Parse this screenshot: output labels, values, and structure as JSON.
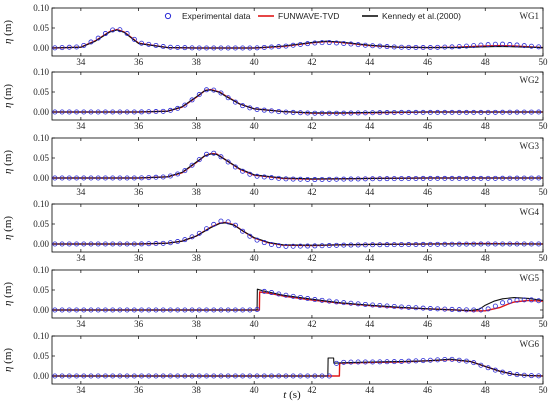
{
  "chart_data": {
    "type": "line",
    "xlabel_italic": "t",
    "xlabel_unit": " (s)",
    "ylabel_italic": "η",
    "ylabel_unit": " (m)",
    "xlim": [
      33,
      50
    ],
    "xticks": [
      34,
      36,
      38,
      40,
      42,
      44,
      46,
      48,
      50
    ],
    "ylim": [
      -0.02,
      0.1
    ],
    "yticks": [
      0.0,
      0.05,
      0.1
    ],
    "ytick_labels": [
      "0.00",
      "0.05",
      "0.10"
    ],
    "legend": {
      "placement": "top",
      "entries": [
        {
          "label": "Experimental data",
          "style": "marker",
          "color": "#2b2bd6"
        },
        {
          "label": "FUNWAVE-TVD",
          "style": "line",
          "color": "#e01818"
        },
        {
          "label": "Kennedy et al.(2000)",
          "style": "line",
          "color": "#111111"
        }
      ]
    },
    "panels": [
      {
        "label": "WG1",
        "series": [
          {
            "key": "exp",
            "x": [
              33,
              34,
              34.5,
              35,
              35.25,
              35.5,
              36,
              37,
              38,
              40,
              41,
              42,
              42.5,
              43,
              44,
              45,
              46,
              47,
              48,
              48.5,
              49,
              50
            ],
            "y": [
              0,
              0.003,
              0.02,
              0.043,
              0.048,
              0.042,
              0.013,
              0.002,
              0,
              0,
              0.004,
              0.012,
              0.014,
              0.012,
              0.006,
              0.002,
              0.001,
              0.003,
              0.008,
              0.01,
              0.008,
              0.002
            ]
          },
          {
            "key": "funwave",
            "x": [
              33,
              34,
              34.5,
              35,
              35.25,
              35.5,
              36,
              37,
              38,
              40,
              41,
              42,
              42.5,
              43,
              44,
              45,
              46,
              47,
              48,
              48.5,
              49,
              50
            ],
            "y": [
              0,
              0.002,
              0.018,
              0.041,
              0.046,
              0.04,
              0.012,
              0.001,
              0,
              0,
              0.004,
              0.013,
              0.016,
              0.014,
              0.006,
              0.002,
              0.001,
              0.002,
              0.005,
              0.006,
              0.005,
              0.001
            ]
          },
          {
            "key": "kennedy",
            "x": [
              33,
              34,
              34.5,
              35,
              35.25,
              35.5,
              36,
              37,
              38,
              40,
              41,
              42,
              42.5,
              43,
              44,
              45,
              46,
              47,
              48,
              48.5,
              49,
              50
            ],
            "y": [
              0,
              0.002,
              0.017,
              0.04,
              0.045,
              0.039,
              0.011,
              0.001,
              0,
              0,
              0.005,
              0.014,
              0.017,
              0.015,
              0.007,
              0.002,
              0.001,
              0.001,
              0.003,
              0.004,
              0.003,
              0.001
            ]
          }
        ]
      },
      {
        "label": "WG2",
        "series": [
          {
            "key": "exp",
            "x": [
              33,
              36,
              37,
              37.5,
              38,
              38.3,
              38.5,
              38.8,
              39,
              39.5,
              40,
              41,
              42,
              43,
              44,
              45,
              46,
              47,
              48,
              50
            ],
            "y": [
              0,
              0,
              0.002,
              0.012,
              0.038,
              0.055,
              0.057,
              0.05,
              0.04,
              0.018,
              0.007,
              0,
              -0.003,
              -0.003,
              -0.002,
              -0.001,
              -0.001,
              -0.001,
              -0.001,
              0
            ]
          },
          {
            "key": "funwave",
            "x": [
              33,
              36,
              37,
              37.5,
              38,
              38.3,
              38.5,
              38.8,
              39,
              39.5,
              40,
              41,
              42,
              43,
              44,
              45,
              46,
              47,
              48,
              50
            ],
            "y": [
              0,
              0,
              0.002,
              0.012,
              0.037,
              0.054,
              0.056,
              0.05,
              0.041,
              0.02,
              0.008,
              0.001,
              -0.003,
              -0.003,
              -0.002,
              -0.001,
              0,
              0,
              0,
              0
            ]
          },
          {
            "key": "kennedy",
            "x": [
              33,
              36,
              37,
              37.5,
              38,
              38.3,
              38.5,
              38.8,
              39,
              39.5,
              40,
              41,
              42,
              43,
              44,
              45,
              46,
              47,
              48,
              50
            ],
            "y": [
              0,
              0,
              0.002,
              0.013,
              0.038,
              0.054,
              0.055,
              0.049,
              0.04,
              0.02,
              0.008,
              0.001,
              -0.002,
              -0.002,
              -0.001,
              0,
              0,
              0,
              0,
              0
            ]
          }
        ]
      },
      {
        "label": "WG3",
        "series": [
          {
            "key": "exp",
            "x": [
              33,
              36,
              37,
              37.5,
              38,
              38.3,
              38.5,
              38.7,
              39,
              39.5,
              40,
              41,
              42,
              43,
              44,
              46,
              48,
              50
            ],
            "y": [
              0,
              0,
              0.003,
              0.013,
              0.04,
              0.058,
              0.063,
              0.061,
              0.045,
              0.02,
              0.005,
              -0.002,
              -0.004,
              -0.003,
              -0.002,
              -0.001,
              -0.001,
              0
            ]
          },
          {
            "key": "funwave",
            "x": [
              33,
              36,
              37,
              37.5,
              38,
              38.3,
              38.5,
              38.7,
              39,
              39.5,
              40,
              41,
              42,
              43,
              44,
              46,
              48,
              50
            ],
            "y": [
              0,
              0,
              0.003,
              0.013,
              0.039,
              0.056,
              0.061,
              0.06,
              0.046,
              0.022,
              0.007,
              -0.001,
              -0.003,
              -0.002,
              -0.001,
              0,
              0,
              0
            ]
          },
          {
            "key": "kennedy",
            "x": [
              33,
              36,
              37,
              37.5,
              38,
              38.3,
              38.5,
              38.7,
              39,
              39.5,
              40,
              41,
              42,
              43,
              44,
              46,
              48,
              50
            ],
            "y": [
              0,
              0,
              0.003,
              0.014,
              0.04,
              0.056,
              0.06,
              0.059,
              0.046,
              0.023,
              0.008,
              0,
              -0.002,
              -0.002,
              -0.001,
              0,
              0,
              0
            ]
          }
        ]
      },
      {
        "label": "WG4",
        "series": [
          {
            "key": "exp",
            "x": [
              33,
              36,
              37,
              37.5,
              38,
              38.5,
              38.8,
              39,
              39.3,
              39.6,
              40,
              40.5,
              41,
              42,
              43,
              44,
              46,
              48,
              50
            ],
            "y": [
              0,
              0,
              0.002,
              0.008,
              0.022,
              0.045,
              0.057,
              0.058,
              0.05,
              0.032,
              0.012,
              0,
              -0.006,
              -0.005,
              -0.003,
              -0.002,
              -0.001,
              0,
              0
            ]
          },
          {
            "key": "funwave",
            "x": [
              33,
              36,
              37,
              37.5,
              38,
              38.5,
              38.8,
              39,
              39.3,
              39.6,
              40,
              40.5,
              41,
              42,
              43,
              44,
              46,
              48,
              50
            ],
            "y": [
              0,
              0,
              0.002,
              0.007,
              0.02,
              0.042,
              0.052,
              0.054,
              0.048,
              0.033,
              0.015,
              0.003,
              -0.003,
              -0.004,
              -0.002,
              -0.001,
              0,
              0.001,
              0
            ]
          },
          {
            "key": "kennedy",
            "x": [
              33,
              36,
              37,
              37.5,
              38,
              38.5,
              38.8,
              39,
              39.3,
              39.6,
              40,
              40.5,
              41,
              42,
              43,
              44,
              46,
              48,
              50
            ],
            "y": [
              0,
              0,
              0.002,
              0.007,
              0.02,
              0.041,
              0.051,
              0.053,
              0.047,
              0.033,
              0.016,
              0.004,
              -0.002,
              -0.003,
              -0.002,
              -0.001,
              0,
              0,
              0
            ]
          }
        ]
      },
      {
        "label": "WG5",
        "series": [
          {
            "key": "exp",
            "x": [
              33,
              40,
              40.15,
              40.2,
              40.5,
              41,
              42,
              43,
              44,
              45,
              46,
              47,
              47.5,
              48,
              48.3,
              48.6,
              49,
              49.5,
              50
            ],
            "y": [
              0,
              0,
              0.002,
              0.048,
              0.045,
              0.038,
              0.027,
              0.019,
              0.013,
              0.008,
              0.004,
              0.001,
              0,
              0,
              0.008,
              0.018,
              0.024,
              0.026,
              0.022
            ]
          },
          {
            "key": "funwave",
            "x": [
              33,
              40.18,
              40.19,
              40.5,
              41,
              42,
              43,
              44,
              45,
              46,
              47,
              47.5,
              48,
              48.5,
              48.8,
              49,
              49.5,
              50
            ],
            "y": [
              0,
              0,
              0.045,
              0.042,
              0.035,
              0.025,
              0.017,
              0.011,
              0.006,
              0.003,
              0,
              -0.002,
              -0.002,
              0.006,
              0.015,
              0.02,
              0.024,
              0.022
            ]
          },
          {
            "key": "kennedy",
            "x": [
              33,
              40.1,
              40.11,
              40.3,
              40.5,
              41,
              42,
              43,
              44,
              45,
              46,
              47,
              47.5,
              47.8,
              48,
              48.3,
              48.6,
              49,
              49.5,
              50
            ],
            "y": [
              0,
              0,
              0.052,
              0.048,
              0.045,
              0.037,
              0.027,
              0.018,
              0.012,
              0.007,
              0.003,
              0,
              -0.001,
              0.002,
              0.012,
              0.022,
              0.028,
              0.031,
              0.029,
              0.024
            ]
          }
        ]
      },
      {
        "label": "WG6",
        "series": [
          {
            "key": "exp",
            "x": [
              33,
              42.7,
              42.75,
              43,
              43.5,
              44,
              45,
              46,
              46.8,
              47.5,
              48,
              48.5,
              49,
              49.5,
              50
            ],
            "y": [
              0,
              0,
              0.03,
              0.034,
              0.035,
              0.035,
              0.036,
              0.039,
              0.042,
              0.036,
              0.023,
              0.011,
              0.004,
              0.001,
              0
            ]
          },
          {
            "key": "funwave",
            "x": [
              33,
              42.95,
              42.96,
              43.5,
              44,
              45,
              46,
              46.8,
              47.5,
              48,
              48.5,
              49,
              49.5,
              50
            ],
            "y": [
              0,
              0,
              0.032,
              0.033,
              0.034,
              0.035,
              0.038,
              0.041,
              0.036,
              0.024,
              0.012,
              0.004,
              0.001,
              0
            ]
          },
          {
            "key": "kennedy",
            "x": [
              33,
              42.55,
              42.56,
              42.75,
              42.76,
              43,
              43.5,
              44,
              45,
              46,
              46.8,
              47.5,
              48,
              48.5,
              49,
              49.5,
              50
            ],
            "y": [
              0,
              0,
              0.045,
              0.045,
              0.032,
              0.033,
              0.034,
              0.035,
              0.036,
              0.038,
              0.042,
              0.036,
              0.024,
              0.012,
              0.004,
              0.001,
              0
            ]
          }
        ]
      }
    ]
  }
}
